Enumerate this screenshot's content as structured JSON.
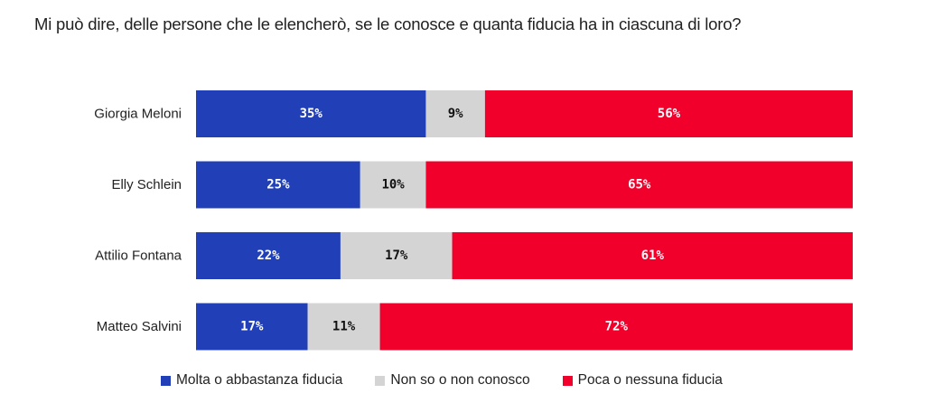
{
  "chart_data": {
    "type": "bar",
    "orientation": "horizontal",
    "stacked": true,
    "title": "Mi può dire, delle persone che le elencherò, se le conosce e quanta fiducia ha in ciascuna di loro?",
    "categories": [
      "Giorgia Meloni",
      "Elly Schlein",
      "Attilio Fontana",
      "Matteo Salvini"
    ],
    "series": [
      {
        "name": "Molta o abbastanza fiducia",
        "color": "#2140b8",
        "label_color": "#ffffff",
        "values": [
          35,
          25,
          22,
          17
        ],
        "labels": [
          "35%",
          "25%",
          "22%",
          "17%"
        ]
      },
      {
        "name": "Non so o non conosco",
        "color": "#d4d4d4",
        "label_color": "#111111",
        "values": [
          9,
          10,
          17,
          11
        ],
        "labels": [
          "9%",
          "10%",
          "17%",
          "11%"
        ]
      },
      {
        "name": "Poca o nessuna fiducia",
        "color": "#f0002a",
        "label_color": "#ffffff",
        "values": [
          56,
          65,
          61,
          72
        ],
        "labels": [
          "56%",
          "65%",
          "61%",
          "72%"
        ]
      }
    ],
    "xlim": [
      0,
      100
    ],
    "grid": false,
    "legend_position": "bottom"
  }
}
